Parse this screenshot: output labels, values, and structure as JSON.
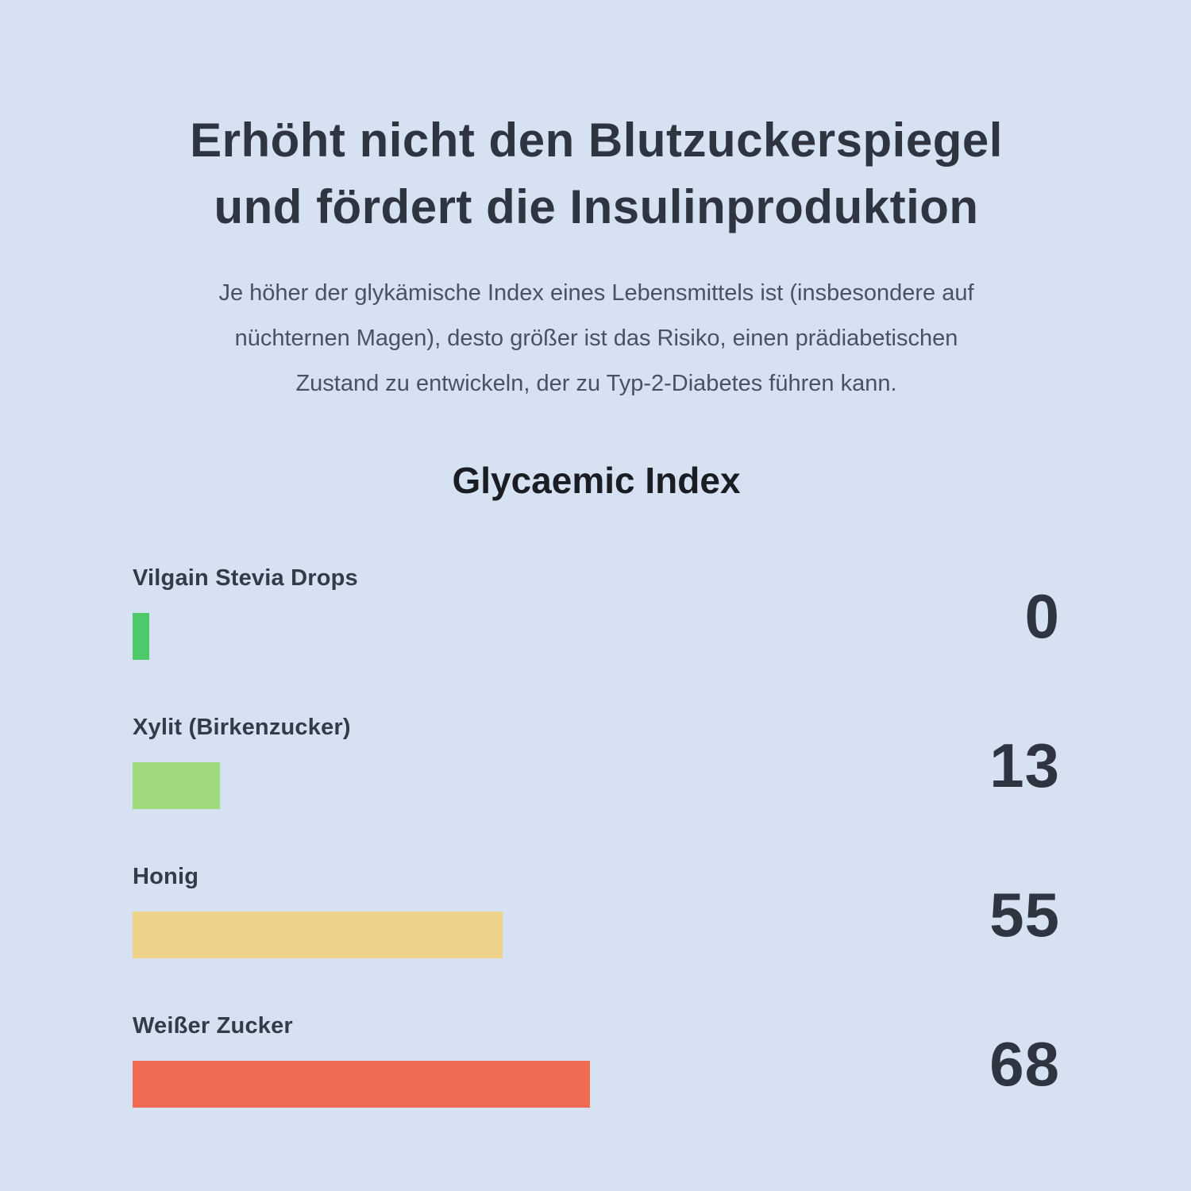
{
  "page": {
    "background_color": "#d6e2f1",
    "heading_color": "#2e3440",
    "subtitle_color": "#4a5261",
    "heading_lines": [
      "Erhöht nicht den Blutzuckerspiegel",
      "und fördert die Insulinproduktion"
    ],
    "subtitle_lines": [
      "Je höher der glykämische Index eines Lebensmittels ist (insbesondere auf",
      "nüchternen Magen), desto größer ist das Risiko, einen prädiabetischen",
      "Zustand zu entwickeln, der zu Typ-2-Diabetes führen kann."
    ]
  },
  "chart_data": {
    "type": "bar",
    "orientation": "horizontal",
    "title": "Glycaemic Index",
    "title_color": "#1a1d23",
    "categories": [
      "Vilgain Stevia Drops",
      "Xylit (Birkenzucker)",
      "Honig",
      "Weißer Zucker"
    ],
    "values": [
      0,
      13,
      55,
      68
    ],
    "value_labels": [
      "0",
      "13",
      "55",
      "68"
    ],
    "bar_colors": [
      "#4dc96a",
      "#9fdb7d",
      "#efd289",
      "#ef6a50"
    ],
    "label_color": "#333b48",
    "value_color": "#2e3440",
    "xlim": [
      0,
      68
    ],
    "grid": false,
    "legend": false,
    "value_label_position": "right",
    "category_label_position": "above-bar"
  }
}
